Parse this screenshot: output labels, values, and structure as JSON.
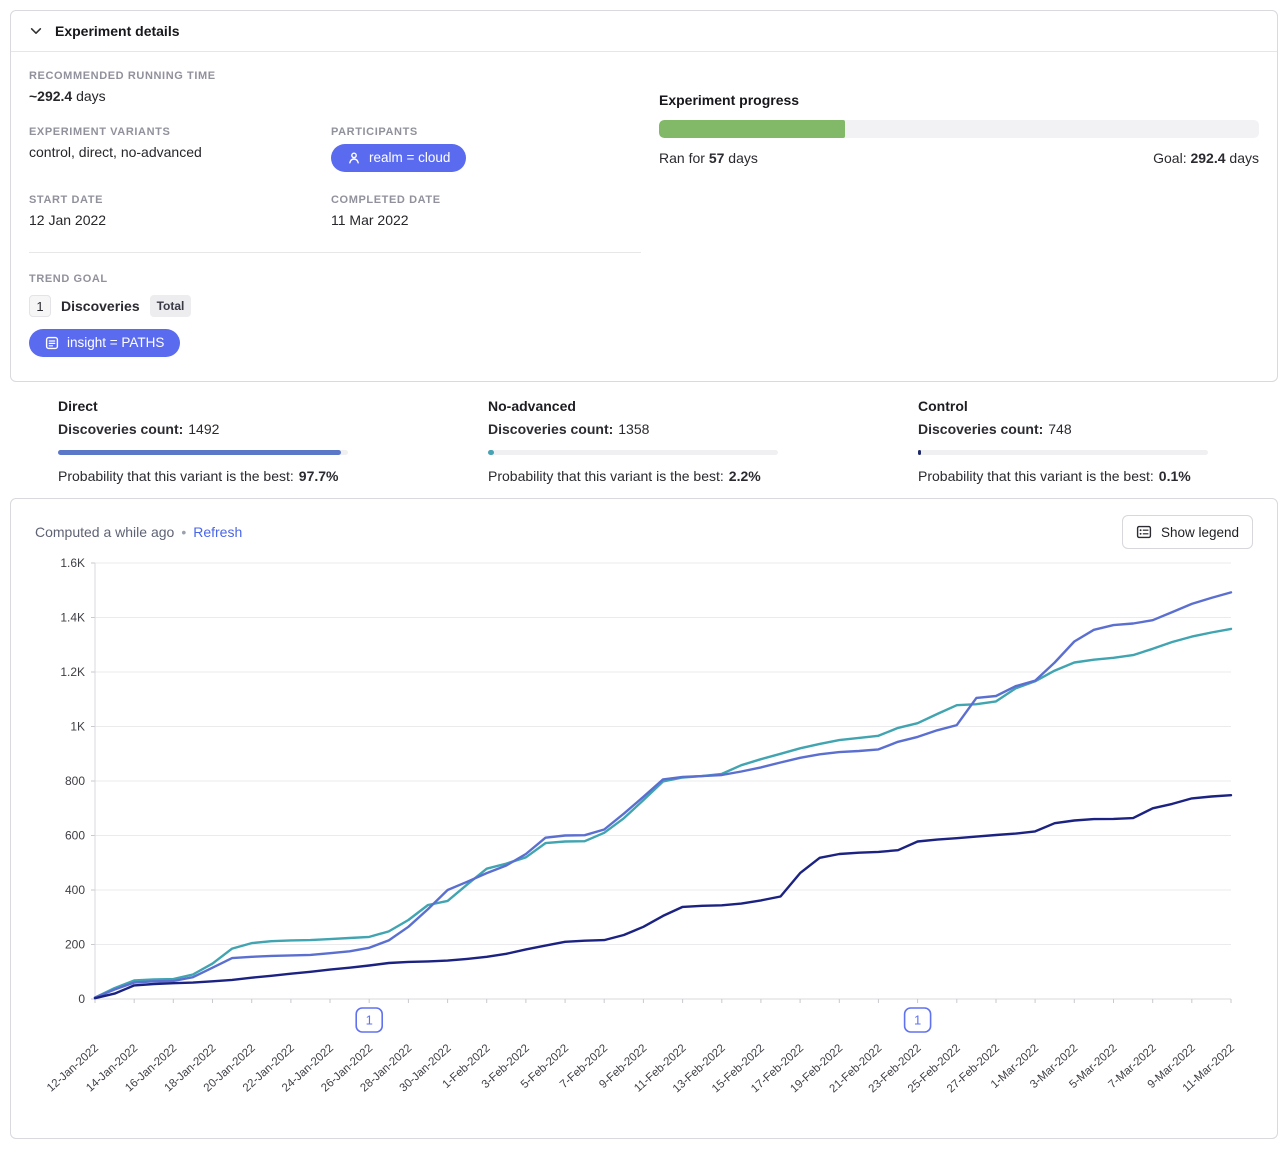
{
  "colors": {
    "accent_pill": "#5a6bf0",
    "progress_green": "#81b968",
    "annotation": "#6172f0",
    "link_blue": "#4a66e8"
  },
  "icons": {
    "header_chevron": "chevron-down",
    "participants_pill": "person",
    "trend_goal_pill": "insight-card",
    "show_legend_button": "legend-list"
  },
  "experiment_details": {
    "title": "Experiment details",
    "recommended_running_time": {
      "label": "RECOMMENDED RUNNING TIME",
      "value_bold": "~292.4",
      "value_rest": " days"
    },
    "variants": {
      "label": "EXPERIMENT VARIANTS",
      "value": "control, direct, no-advanced"
    },
    "participants": {
      "label": "PARTICIPANTS",
      "pill": "realm = cloud"
    },
    "start_date": {
      "label": "START DATE",
      "value": "12 Jan 2022"
    },
    "completed_date": {
      "label": "COMPLETED DATE",
      "value": "11 Mar 2022"
    },
    "trend_goal": {
      "label": "TREND GOAL",
      "step_number": "1",
      "event": "Discoveries",
      "badge": "Total",
      "pill": "insight = PATHS"
    },
    "progress": {
      "title": "Experiment progress",
      "percent": 31,
      "ran_prefix": "Ran for ",
      "ran_days": "57",
      "ran_suffix": " days",
      "goal_prefix": "Goal: ",
      "goal_days": "292.4",
      "goal_suffix": " days"
    }
  },
  "variant_results": [
    {
      "name": "Direct",
      "count_label": "Discoveries count:",
      "count": "1492",
      "probability_label": "Probability that this variant is the best:",
      "probability": "97.7%",
      "bar_percent": 97.7,
      "bar_color": "#5a77c8"
    },
    {
      "name": "No-advanced",
      "count_label": "Discoveries count:",
      "count": "1358",
      "probability_label": "Probability that this variant is the best:",
      "probability": "2.2%",
      "bar_percent": 2.2,
      "bar_color": "#47a2b4"
    },
    {
      "name": "Control",
      "count_label": "Discoveries count:",
      "count": "748",
      "probability_label": "Probability that this variant is the best:",
      "probability": "0.1%",
      "bar_percent": 0.1,
      "bar_color": "#202a6b"
    }
  ],
  "chart_panel": {
    "computed_text": "Computed a while ago",
    "separator": "•",
    "refresh_label": "Refresh",
    "show_legend_label": "Show legend"
  },
  "chart_data": {
    "type": "line",
    "title": "",
    "xlabel": "",
    "ylabel": "",
    "ylim": [
      0,
      1600
    ],
    "grid": "horizontal",
    "legend_position": "hidden",
    "label_every": 2,
    "yticks": [
      {
        "value": 0,
        "label": "0"
      },
      {
        "value": 200,
        "label": "200"
      },
      {
        "value": 400,
        "label": "400"
      },
      {
        "value": 600,
        "label": "600"
      },
      {
        "value": 800,
        "label": "800"
      },
      {
        "value": 1000,
        "label": "1K"
      },
      {
        "value": 1200,
        "label": "1.2K"
      },
      {
        "value": 1400,
        "label": "1.4K"
      },
      {
        "value": 1600,
        "label": "1.6K"
      }
    ],
    "x": [
      "12-Jan-2022",
      "13-Jan-2022",
      "14-Jan-2022",
      "15-Jan-2022",
      "16-Jan-2022",
      "17-Jan-2022",
      "18-Jan-2022",
      "19-Jan-2022",
      "20-Jan-2022",
      "21-Jan-2022",
      "22-Jan-2022",
      "23-Jan-2022",
      "24-Jan-2022",
      "25-Jan-2022",
      "26-Jan-2022",
      "27-Jan-2022",
      "28-Jan-2022",
      "29-Jan-2022",
      "30-Jan-2022",
      "31-Jan-2022",
      "1-Feb-2022",
      "2-Feb-2022",
      "3-Feb-2022",
      "4-Feb-2022",
      "5-Feb-2022",
      "6-Feb-2022",
      "7-Feb-2022",
      "8-Feb-2022",
      "9-Feb-2022",
      "10-Feb-2022",
      "11-Feb-2022",
      "12-Feb-2022",
      "13-Feb-2022",
      "14-Feb-2022",
      "15-Feb-2022",
      "16-Feb-2022",
      "17-Feb-2022",
      "18-Feb-2022",
      "19-Feb-2022",
      "20-Feb-2022",
      "21-Feb-2022",
      "22-Feb-2022",
      "23-Feb-2022",
      "24-Feb-2022",
      "25-Feb-2022",
      "26-Feb-2022",
      "27-Feb-2022",
      "28-Feb-2022",
      "1-Mar-2022",
      "2-Mar-2022",
      "3-Mar-2022",
      "4-Mar-2022",
      "5-Mar-2022",
      "6-Mar-2022",
      "7-Mar-2022",
      "8-Mar-2022",
      "9-Mar-2022",
      "10-Mar-2022",
      "11-Mar-2022"
    ],
    "series": [
      {
        "name": "no-advanced",
        "color": "#41a4b1",
        "values": [
          5,
          40,
          68,
          72,
          73,
          90,
          130,
          185,
          205,
          212,
          215,
          216,
          220,
          224,
          228,
          248,
          290,
          345,
          360,
          420,
          478,
          497,
          520,
          572,
          578,
          579,
          610,
          663,
          730,
          798,
          813,
          818,
          826,
          858,
          880,
          900,
          920,
          936,
          950,
          958,
          966,
          995,
          1012,
          1046,
          1078,
          1082,
          1092,
          1140,
          1166,
          1205,
          1235,
          1245,
          1252,
          1262,
          1285,
          1310,
          1330,
          1345,
          1358
        ]
      },
      {
        "name": "direct",
        "color": "#5b6fd1",
        "values": [
          5,
          35,
          60,
          65,
          66,
          80,
          115,
          150,
          155,
          158,
          160,
          162,
          168,
          175,
          188,
          215,
          265,
          330,
          400,
          430,
          462,
          490,
          532,
          592,
          600,
          601,
          622,
          680,
          742,
          806,
          815,
          818,
          822,
          835,
          850,
          868,
          885,
          898,
          906,
          910,
          916,
          944,
          962,
          986,
          1005,
          1105,
          1112,
          1148,
          1168,
          1235,
          1312,
          1355,
          1372,
          1378,
          1390,
          1420,
          1450,
          1472,
          1492
        ]
      },
      {
        "name": "control",
        "color": "#1b2281",
        "values": [
          3,
          20,
          50,
          55,
          58,
          60,
          65,
          70,
          78,
          85,
          93,
          100,
          108,
          115,
          123,
          132,
          136,
          138,
          141,
          147,
          155,
          166,
          182,
          196,
          210,
          214,
          216,
          235,
          265,
          305,
          338,
          342,
          344,
          350,
          362,
          376,
          462,
          518,
          532,
          537,
          540,
          546,
          578,
          585,
          590,
          596,
          602,
          607,
          615,
          645,
          655,
          660,
          661,
          664,
          700,
          716,
          736,
          743,
          748
        ]
      }
    ],
    "annotations": [
      {
        "label": "1",
        "x_index": 14
      },
      {
        "label": "1",
        "x_index": 42
      }
    ]
  }
}
